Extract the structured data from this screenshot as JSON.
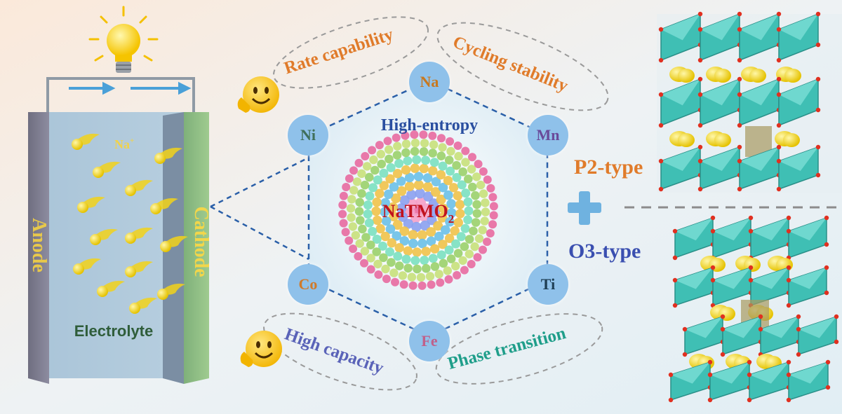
{
  "battery": {
    "ion_label": "Na",
    "ion_charge": "+",
    "anode_label": "Anode",
    "cathode_label": "Cathode",
    "electrolyte_label": "Electrolyte"
  },
  "center": {
    "title": "High-entropy",
    "compound": "NaTMO",
    "compound_sub": "2"
  },
  "elements": [
    {
      "symbol": "Na",
      "color": "#c8781e"
    },
    {
      "symbol": "Mn",
      "color": "#6a4a9a"
    },
    {
      "symbol": "Ti",
      "color": "#1f3f55"
    },
    {
      "symbol": "Fe",
      "color": "#c0608a"
    },
    {
      "symbol": "Co",
      "color": "#d07a2a"
    },
    {
      "symbol": "Ni",
      "color": "#3f6f5a"
    }
  ],
  "properties": [
    {
      "text": "Rate capability",
      "color": "#e07b2a"
    },
    {
      "text": "Cycling stability",
      "color": "#e07b2a"
    },
    {
      "text": "High capacity",
      "color": "#5a63b8"
    },
    {
      "text": "Phase transition",
      "color": "#1f9e8a"
    }
  ],
  "structures": {
    "p2_label": "P2-type",
    "o3_label": "O3-type",
    "p2_color": "#e07b2a",
    "o3_color": "#3a4fb0"
  },
  "colors": {
    "accent_blue": "#2a5fa8",
    "compound_red": "#c0121e",
    "ion_yellow": "#f2d21a",
    "octahedra": "#3fbfb4"
  }
}
